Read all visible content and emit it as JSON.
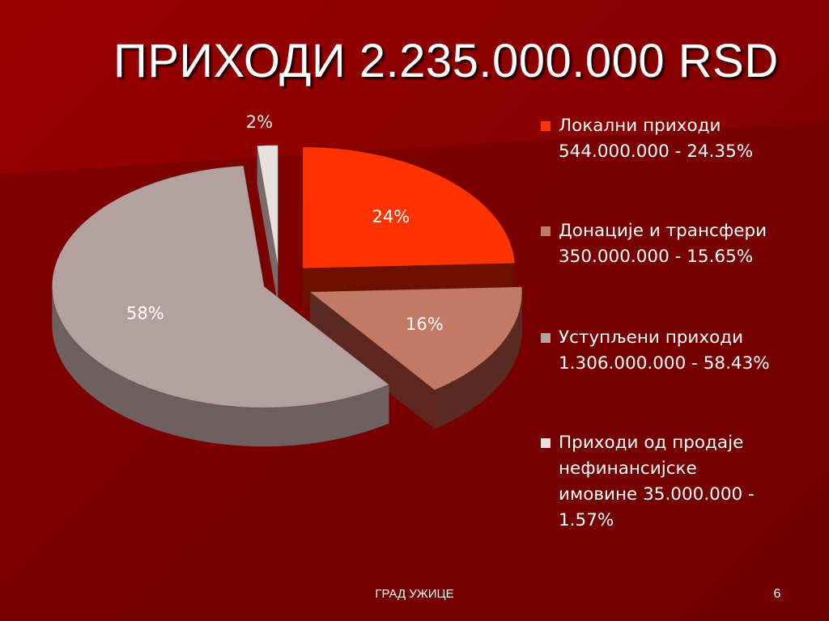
{
  "title": "ПРИХОДИ 2.235.000.000 RSD",
  "footer": {
    "label": "ГРАД УЖИЦЕ",
    "page_number": "6"
  },
  "chart_data": {
    "type": "pie",
    "title": "ПРИХОДИ 2.235.000.000 RSD",
    "legend_position": "right",
    "slices": [
      {
        "name": "Локални приходи",
        "legend_lines": [
          "Локални приходи",
          "544.000.000 - 24.35%"
        ],
        "value": 544000000,
        "percent": 24.35,
        "label": "24%",
        "color": "#ff3300",
        "side_color": "#6b1200"
      },
      {
        "name": "Донације и трансфери",
        "legend_lines": [
          "Донације и трансфери",
          "350.000.000 - 15.65%"
        ],
        "value": 350000000,
        "percent": 15.65,
        "label": "16%",
        "color": "#c27a64",
        "side_color": "#5a2a22"
      },
      {
        "name": "Уступљени приходи",
        "legend_lines": [
          "Уступљени приходи",
          "1.306.000.000 - 58.43%"
        ],
        "value": 1306000000,
        "percent": 58.43,
        "label": "58%",
        "color": "#b5a0a0",
        "side_color": "#6e6060"
      },
      {
        "name": "Приходи од продаје нефинансијске имовине",
        "legend_lines": [
          "Приходи од продаје",
          "нефинансијске",
          "имовине 35.000.000 -",
          "1.57%"
        ],
        "value": 35000000,
        "percent": 1.57,
        "label": "2%",
        "color": "#e6e0e0",
        "side_color": "#7a7474"
      }
    ]
  }
}
